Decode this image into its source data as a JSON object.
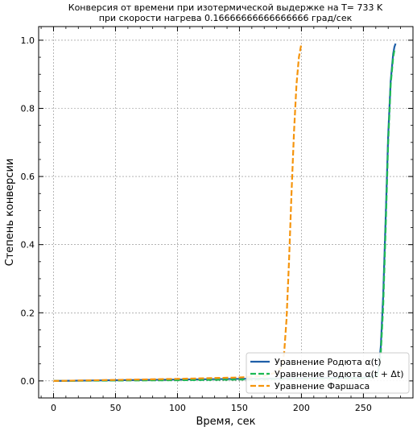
{
  "chart_data": {
    "type": "line",
    "title": "Конверсия от времени при изотермической выдержке на T= 733 K\nпри скорости нагрева 0.16666666666666666 град/сек",
    "xlabel": "Время, сек",
    "ylabel": "Степень конверсии",
    "xlim": [
      -12,
      290
    ],
    "ylim": [
      -0.05,
      1.04
    ],
    "xticks": [
      0,
      50,
      100,
      150,
      200,
      250
    ],
    "yticks": [
      0.0,
      0.2,
      0.4,
      0.6,
      0.8,
      1.0
    ],
    "xtick_labels": [
      "0",
      "50",
      "100",
      "150",
      "200",
      "250"
    ],
    "ytick_labels": [
      "0.0",
      "0.2",
      "0.4",
      "0.6",
      "0.8",
      "1.0"
    ],
    "grid": true,
    "legend_position": "bottom-right",
    "series": [
      {
        "name": "Уравнение Родюта α(t)",
        "color": "#1f5fa8",
        "dash": "solid",
        "x": [
          0,
          50,
          100,
          150,
          200,
          250,
          260,
          262,
          264,
          266,
          268,
          270,
          272,
          274,
          275,
          276
        ],
        "y": [
          0.0,
          0.002,
          0.004,
          0.006,
          0.008,
          0.01,
          0.015,
          0.03,
          0.1,
          0.25,
          0.48,
          0.72,
          0.88,
          0.96,
          0.98,
          0.99
        ]
      },
      {
        "name": "Уравнение Родюта α(t + Δt)",
        "color": "#1db954",
        "dash": "dashed",
        "x": [
          0,
          50,
          100,
          150,
          200,
          250,
          260,
          262,
          264,
          266,
          268,
          270,
          272,
          274,
          275
        ],
        "y": [
          0.0,
          0.001,
          0.002,
          0.004,
          0.006,
          0.008,
          0.012,
          0.025,
          0.08,
          0.22,
          0.45,
          0.7,
          0.87,
          0.95,
          0.97
        ]
      },
      {
        "name": "Уравнение Фаршаса",
        "color": "#f5940c",
        "dash": "dashed",
        "x": [
          0,
          50,
          100,
          150,
          170,
          180,
          184,
          186,
          188,
          190,
          192,
          194,
          196,
          198,
          200
        ],
        "y": [
          0.0,
          0.003,
          0.006,
          0.01,
          0.015,
          0.025,
          0.04,
          0.08,
          0.18,
          0.35,
          0.55,
          0.73,
          0.87,
          0.95,
          0.99
        ]
      }
    ]
  }
}
